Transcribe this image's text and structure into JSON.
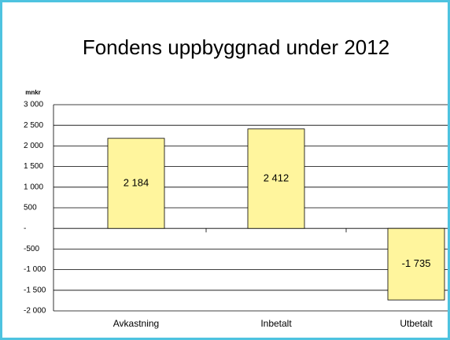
{
  "chart_data": {
    "type": "bar",
    "title": "Fondens uppbyggnad under 2012",
    "y_label": "mnkr",
    "categories": [
      "Avkastning",
      "Inbetalt",
      "Utbetalt"
    ],
    "values": [
      2184,
      2412,
      -1735
    ],
    "value_labels": [
      "2 184",
      "2 412",
      "-1 735"
    ],
    "color": "#fff59d",
    "ylim": [
      -2000,
      3000
    ],
    "yticks": [
      {
        "value": -2000,
        "label": "-2 000"
      },
      {
        "value": -1500,
        "label": "-1 500"
      },
      {
        "value": -1000,
        "label": "-1 000"
      },
      -500,
      {
        "value": 0,
        "label": "-"
      },
      500,
      {
        "value": 1000,
        "label": "1 000"
      },
      {
        "value": 1500,
        "label": "1 500"
      },
      {
        "value": 2000,
        "label": "2 000"
      },
      {
        "value": 2500,
        "label": "2 500"
      },
      {
        "value": 3000,
        "label": "3 000"
      }
    ],
    "grid": true
  }
}
